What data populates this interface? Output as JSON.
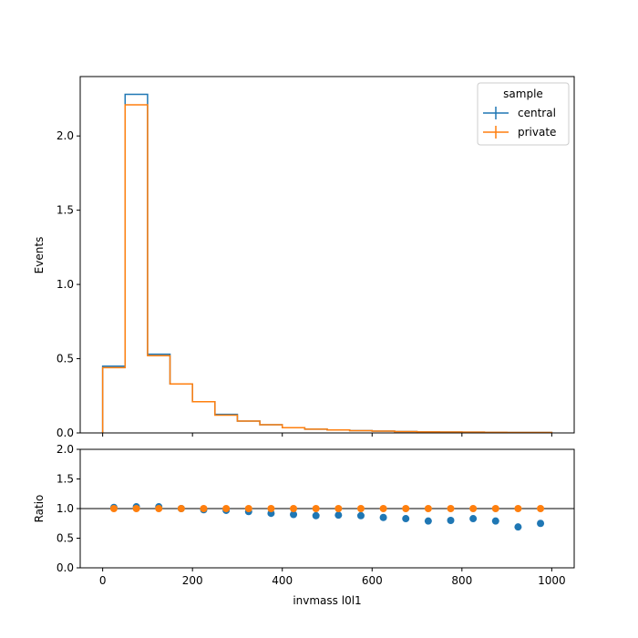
{
  "chart_data": [
    {
      "type": "line",
      "drawstyle": "steps",
      "ylabel": "Events",
      "xlim": [
        -50,
        1050
      ],
      "ylim": [
        0,
        2.4
      ],
      "yticks": [
        "0.0",
        "0.5",
        "1.0",
        "1.5",
        "2.0"
      ],
      "bin_edges": [
        0,
        50,
        100,
        150,
        200,
        250,
        300,
        350,
        400,
        450,
        500,
        550,
        600,
        650,
        700,
        750,
        800,
        850,
        900,
        950,
        1000
      ],
      "legend": {
        "title": "sample",
        "placement": "top-right"
      },
      "series": [
        {
          "name": "central",
          "color": "#1f77b4",
          "values": [
            0.45,
            2.28,
            0.53,
            0.33,
            0.21,
            0.125,
            0.08,
            0.055,
            0.035,
            0.025,
            0.02,
            0.015,
            0.012,
            0.009,
            0.007,
            0.006,
            0.005,
            0.004,
            0.003,
            0.003
          ]
        },
        {
          "name": "private",
          "color": "#ff7f0e",
          "values": [
            0.44,
            2.21,
            0.52,
            0.33,
            0.21,
            0.12,
            0.08,
            0.055,
            0.035,
            0.025,
            0.02,
            0.015,
            0.012,
            0.009,
            0.007,
            0.006,
            0.005,
            0.004,
            0.003,
            0.003
          ]
        }
      ]
    },
    {
      "type": "scatter",
      "xlabel": "invmass l0l1",
      "ylabel": "Ratio",
      "xlim": [
        -50,
        1050
      ],
      "ylim": [
        0,
        2
      ],
      "xticks": [
        "0",
        "200",
        "400",
        "600",
        "800",
        "1000"
      ],
      "yticks": [
        "0.0",
        "0.5",
        "1.0",
        "1.5",
        "2.0"
      ],
      "reference_line": 1.0,
      "x": [
        25,
        75,
        125,
        175,
        225,
        275,
        325,
        375,
        425,
        475,
        525,
        575,
        625,
        675,
        725,
        775,
        825,
        875,
        925,
        975
      ],
      "series": [
        {
          "name": "central",
          "color": "#1f77b4",
          "values": [
            1.02,
            1.03,
            1.03,
            1.0,
            0.98,
            0.97,
            0.95,
            0.92,
            0.9,
            0.88,
            0.89,
            0.88,
            0.85,
            0.83,
            0.79,
            0.8,
            0.83,
            0.79,
            0.69,
            0.75
          ]
        },
        {
          "name": "private",
          "color": "#ff7f0e",
          "values": [
            1.0,
            1.0,
            1.0,
            1.0,
            1.0,
            1.0,
            1.0,
            1.0,
            1.0,
            1.0,
            1.0,
            1.0,
            1.0,
            1.0,
            1.0,
            1.0,
            1.0,
            1.0,
            1.0,
            1.0
          ]
        }
      ]
    }
  ]
}
